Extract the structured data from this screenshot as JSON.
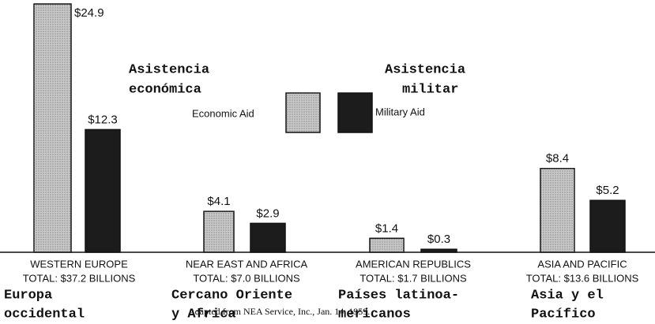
{
  "chart_data": {
    "type": "bar",
    "categories": [
      "WESTERN EUROPE",
      "NEAR EAST AND AFRICA",
      "AMERICAN REPUBLICS",
      "ASIA AND PACIFIC"
    ],
    "totals": [
      "TOTAL: $37.2 BILLIONS",
      "TOTAL: $7.0 BILLIONS",
      "TOTAL: $1.7 BILLIONS",
      "TOTAL: $13.6 BILLIONS"
    ],
    "categories_es": [
      [
        "Europa",
        "occidental"
      ],
      [
        "Cercano Oriente",
        "y Africa"
      ],
      [
        "Países latinoa-",
        "mericanos"
      ],
      [
        "Asia y el",
        "Pacífico"
      ]
    ],
    "series": [
      {
        "name": "Economic Aid",
        "name_es": [
          "Asistencia",
          "económica"
        ],
        "color": "#c9c9c9",
        "values": [
          24.9,
          4.1,
          1.4,
          8.4
        ],
        "value_labels": [
          "$24.9",
          "$4.1",
          "$1.4",
          "$8.4"
        ]
      },
      {
        "name": "Military Aid",
        "name_es": [
          "Asistencia",
          "militar"
        ],
        "color": "#1c1c1c",
        "values": [
          12.3,
          2.9,
          0.3,
          5.2
        ],
        "value_labels": [
          "$12.3",
          "$2.9",
          "$0.3",
          "$5.2"
        ]
      }
    ],
    "source": "Adapted from NEA Service, Inc., Jan. 14, 1959."
  }
}
